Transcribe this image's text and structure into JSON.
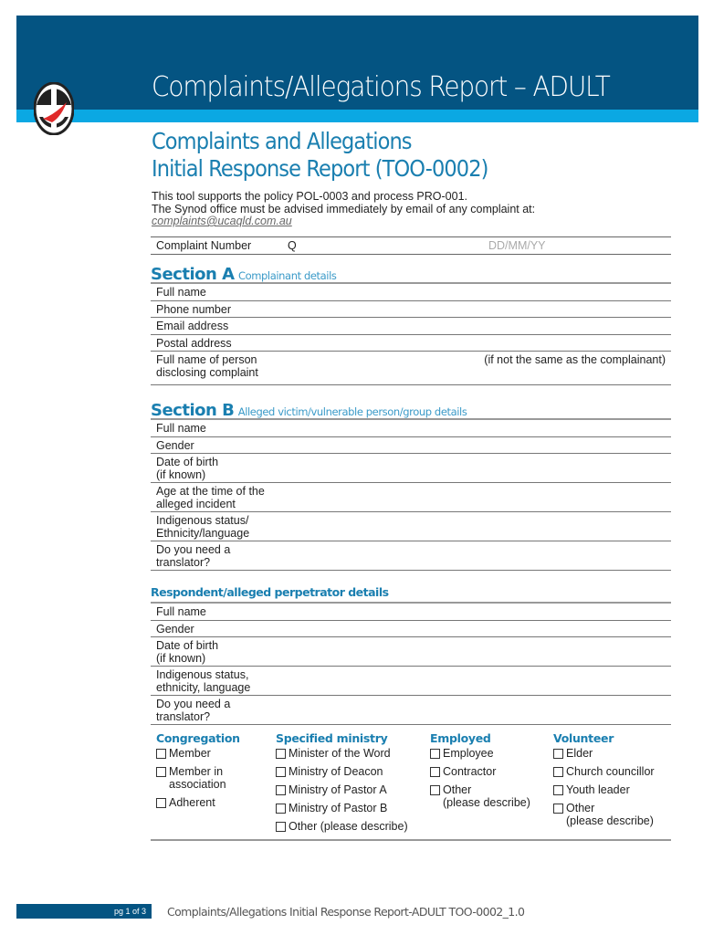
{
  "header": {
    "title": "Complaints/Allegations Report – ADULT",
    "subtitle_line1": "Complaints and Allegations",
    "subtitle_line2": "Initial Response Report (TOO-0002)",
    "colors": {
      "banner": "#045482",
      "strip": "#0ba8e3",
      "accent": "#1a7fb0"
    }
  },
  "intro": {
    "line1": "This tool supports the policy POL-0003 and process PRO-001.",
    "line2": "The Synod office must be advised immediately by email of any complaint at:",
    "email": "complaints@ucaqld.com.au"
  },
  "complaint_number": {
    "label": "Complaint Number",
    "prefix": "Q",
    "date_placeholder": "DD/MM/YY"
  },
  "section_a": {
    "title": "Section A",
    "subtitle": "Complainant details",
    "rows": [
      "Full name",
      "Phone number",
      "Email address",
      "Postal address"
    ],
    "discloser_line1": "Full name of person",
    "discloser_line2": "disclosing complaint",
    "discloser_note": "(if not the same as the complainant)"
  },
  "section_b": {
    "title": "Section B",
    "subtitle": "Alleged victim/vulnerable person/group details",
    "rows": [
      [
        "Full name"
      ],
      [
        "Gender"
      ],
      [
        "Date of birth",
        "(if known)"
      ],
      [
        "Age at the time of the",
        "alleged incident"
      ],
      [
        "Indigenous status/",
        "Ethnicity/language"
      ],
      [
        "Do you need a",
        "translator?"
      ]
    ]
  },
  "respondent": {
    "title": "Respondent/alleged perpetrator details",
    "rows": [
      [
        "Full name"
      ],
      [
        "Gender"
      ],
      [
        "Date of birth",
        "(if known)"
      ],
      [
        "Indigenous status,",
        "ethnicity, language"
      ],
      [
        "Do you need a",
        "translator?"
      ]
    ]
  },
  "roles": [
    {
      "heading": "Congregation",
      "options": [
        [
          "Member"
        ],
        [
          "Member in",
          "association"
        ],
        [
          "Adherent"
        ]
      ]
    },
    {
      "heading": "Specified ministry",
      "options": [
        [
          "Minister of the Word"
        ],
        [
          "Ministry of Deacon"
        ],
        [
          "Ministry of Pastor A"
        ],
        [
          "Ministry of Pastor B"
        ],
        [
          "Other (please describe)"
        ]
      ]
    },
    {
      "heading": "Employed",
      "options": [
        [
          "Employee"
        ],
        [
          "Contractor"
        ],
        [
          "Other",
          "(please describe)"
        ]
      ]
    },
    {
      "heading": "Volunteer",
      "options": [
        [
          "Elder"
        ],
        [
          "Church councillor"
        ],
        [
          "Youth leader"
        ],
        [
          "Other",
          "(please describe)"
        ]
      ]
    }
  ],
  "footer": {
    "page": "pg 1 of 3",
    "doc": "Complaints/Allegations Initial Response Report-ADULT TOO-0002_1.0"
  }
}
